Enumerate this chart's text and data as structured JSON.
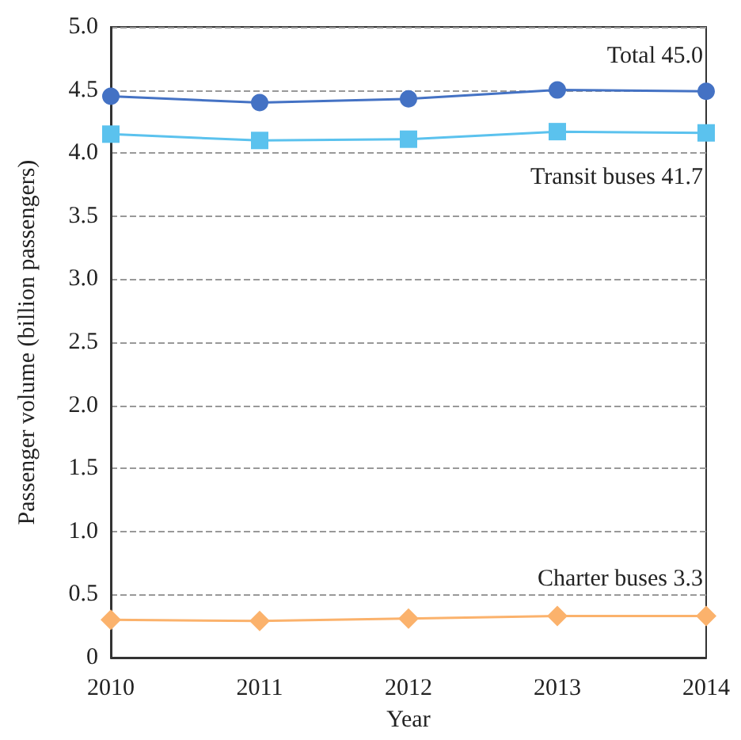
{
  "chart_data": {
    "type": "line",
    "xlabel": "Year",
    "ylabel": "Passenger volume (billion passengers)",
    "categories": [
      "2010",
      "2011",
      "2012",
      "2013",
      "2014"
    ],
    "series": [
      {
        "name": "Total 45.0",
        "color": "#4472c4",
        "marker": "circle",
        "values": [
          4.45,
          4.4,
          4.43,
          4.5,
          4.49
        ]
      },
      {
        "name": "Transit buses 41.7",
        "color": "#5bc2ee",
        "marker": "square",
        "values": [
          4.15,
          4.1,
          4.11,
          4.17,
          4.16
        ]
      },
      {
        "name": "Charter buses 3.3",
        "color": "#fbb26c",
        "marker": "diamond",
        "values": [
          0.3,
          0.29,
          0.31,
          0.33,
          0.33
        ]
      }
    ],
    "ylim": [
      0,
      5
    ],
    "yticks": [
      0,
      0.5,
      {
        "value": 1,
        "label": "1.0"
      },
      1.5,
      {
        "value": 2,
        "label": "2.0"
      },
      2.5,
      {
        "value": 3,
        "label": "3.0"
      },
      3.5,
      {
        "value": 4,
        "label": "4.0"
      },
      4.5,
      {
        "value": 5,
        "label": "5.0"
      }
    ],
    "grid": "y",
    "legend": false,
    "line_style": "solid"
  }
}
